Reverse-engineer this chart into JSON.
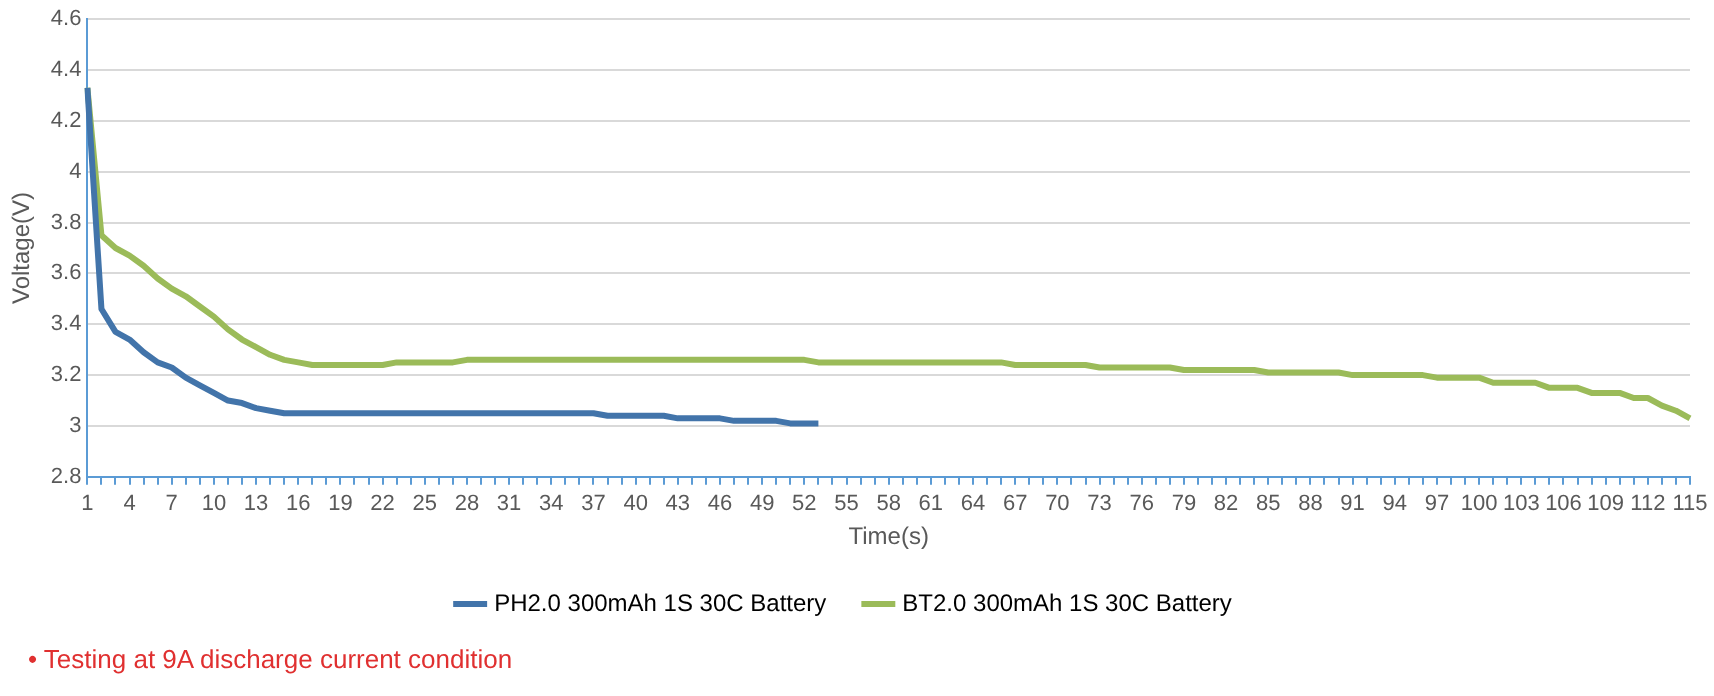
{
  "chart_data": {
    "type": "line",
    "xlabel": "Time(s)",
    "ylabel": "Voltage(V)",
    "categories": [
      "1",
      null,
      null,
      "4",
      null,
      null,
      "7",
      null,
      null,
      "10",
      null,
      null,
      "13",
      null,
      null,
      "16",
      null,
      null,
      "19",
      null,
      null,
      "22",
      null,
      null,
      "25",
      null,
      null,
      "28",
      null,
      null,
      "31",
      null,
      null,
      "34",
      null,
      null,
      "37",
      null,
      null,
      "40",
      null,
      null,
      "43",
      null,
      null,
      "46",
      null,
      null,
      "49",
      null,
      null,
      "52",
      null,
      null,
      "55",
      null,
      null,
      "58",
      null,
      null,
      "61",
      null,
      null,
      "64",
      null,
      null,
      "67",
      null,
      null,
      "70",
      null,
      null,
      "73",
      null,
      null,
      "76",
      null,
      null,
      "79",
      null,
      null,
      "82",
      null,
      null,
      "85",
      null,
      null,
      "88",
      null,
      null,
      "91",
      null,
      null,
      "94",
      null,
      null,
      "97",
      null,
      null,
      "100",
      null,
      null,
      "103",
      null,
      null,
      "106",
      null,
      null,
      "109",
      null,
      null,
      "112",
      null,
      null,
      "115"
    ],
    "series": [
      {
        "name": "PH2.0 300mAh 1S 30C Battery",
        "color": "#4274aa",
        "values": [
          4.33,
          3.46,
          3.37,
          3.34,
          3.29,
          3.25,
          3.23,
          3.19,
          3.16,
          3.13,
          3.1,
          3.09,
          3.07,
          3.06,
          3.05,
          3.05,
          3.05,
          3.05,
          3.05,
          3.05,
          3.05,
          3.05,
          3.05,
          3.05,
          3.05,
          3.05,
          3.05,
          3.05,
          3.05,
          3.05,
          3.05,
          3.05,
          3.05,
          3.05,
          3.05,
          3.05,
          3.05,
          3.04,
          3.04,
          3.04,
          3.04,
          3.04,
          3.03,
          3.03,
          3.03,
          3.03,
          3.02,
          3.02,
          3.02,
          3.02,
          3.01,
          3.01,
          3.01,
          null,
          null,
          null,
          null,
          null,
          null,
          null,
          null,
          null,
          null,
          null,
          null,
          null,
          null,
          null,
          null,
          null,
          null,
          null,
          null,
          null,
          null,
          null,
          null,
          null,
          null,
          null,
          null,
          null,
          null,
          null,
          null,
          null,
          null,
          null,
          null,
          null,
          null,
          null,
          null,
          null,
          null,
          null,
          null,
          null,
          null,
          null,
          null,
          null,
          null,
          null,
          null,
          null,
          null,
          null,
          null,
          null,
          null,
          null,
          null,
          null,
          null
        ]
      },
      {
        "name": "BT2.0 300mAh 1S 30C Battery",
        "color": "#9bbb59",
        "values": [
          4.33,
          3.75,
          3.7,
          3.67,
          3.63,
          3.58,
          3.54,
          3.51,
          3.47,
          3.43,
          3.38,
          3.34,
          3.31,
          3.28,
          3.26,
          3.25,
          3.24,
          3.24,
          3.24,
          3.24,
          3.24,
          3.24,
          3.25,
          3.25,
          3.25,
          3.25,
          3.25,
          3.26,
          3.26,
          3.26,
          3.26,
          3.26,
          3.26,
          3.26,
          3.26,
          3.26,
          3.26,
          3.26,
          3.26,
          3.26,
          3.26,
          3.26,
          3.26,
          3.26,
          3.26,
          3.26,
          3.26,
          3.26,
          3.26,
          3.26,
          3.26,
          3.26,
          3.25,
          3.25,
          3.25,
          3.25,
          3.25,
          3.25,
          3.25,
          3.25,
          3.25,
          3.25,
          3.25,
          3.25,
          3.25,
          3.25,
          3.24,
          3.24,
          3.24,
          3.24,
          3.24,
          3.24,
          3.23,
          3.23,
          3.23,
          3.23,
          3.23,
          3.23,
          3.22,
          3.22,
          3.22,
          3.22,
          3.22,
          3.22,
          3.21,
          3.21,
          3.21,
          3.21,
          3.21,
          3.21,
          3.2,
          3.2,
          3.2,
          3.2,
          3.2,
          3.2,
          3.19,
          3.19,
          3.19,
          3.19,
          3.17,
          3.17,
          3.17,
          3.17,
          3.15,
          3.15,
          3.15,
          3.13,
          3.13,
          3.13,
          3.11,
          3.11,
          3.08,
          3.06,
          3.03
        ]
      }
    ],
    "ylim": [
      2.8,
      4.6
    ],
    "yticks": [
      2.8,
      3,
      3.2,
      3.4,
      3.6,
      3.8,
      4,
      4.2,
      4.4,
      4.6
    ],
    "grid": "y",
    "legend": "bottom",
    "marker": "none",
    "line_style": "solid",
    "annotations": [
      "• Testing at 9A discharge current condition"
    ]
  }
}
